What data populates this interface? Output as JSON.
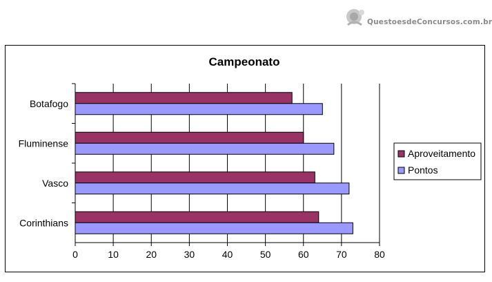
{
  "watermark": {
    "text": "QuestoesdeConcursos.com.br"
  },
  "chart_data": {
    "type": "bar",
    "orientation": "horizontal",
    "title": "Campeonato",
    "xlabel": "",
    "ylabel": "",
    "categories": [
      "Botafogo",
      "Fluminense",
      "Vasco",
      "Corinthians"
    ],
    "series": [
      {
        "name": "Aproveitamento",
        "color": "#993366",
        "values": [
          57,
          60,
          63,
          64
        ]
      },
      {
        "name": "Pontos",
        "color": "#9999ff",
        "values": [
          65,
          68,
          72,
          73
        ]
      }
    ],
    "xlim": [
      0,
      80
    ],
    "xticks": [
      "0",
      "10",
      "20",
      "30",
      "40",
      "50",
      "60",
      "70",
      "80"
    ],
    "grid": true,
    "legend": "right"
  }
}
